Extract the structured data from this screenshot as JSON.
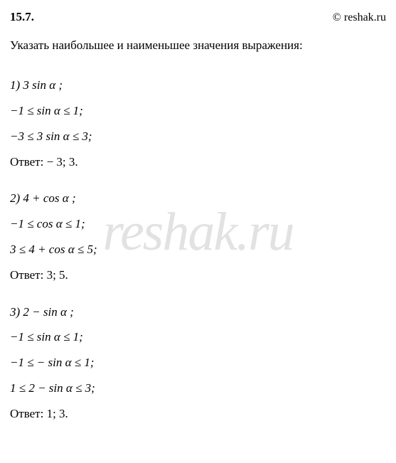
{
  "header": {
    "problem_number": "15.7.",
    "copyright": "© reshak.ru"
  },
  "watermark": "reshak.ru",
  "task": "Указать наибольшее и наименьшее значения выражения:",
  "subs": {
    "s1": {
      "title": "1) 3 sin α ;",
      "l1": "−1 ≤ sin α ≤ 1;",
      "l2": "−3 ≤ 3 sin α ≤ 3;",
      "answer": "Ответ:  − 3;  3."
    },
    "s2": {
      "title": "2) 4 + cos α ;",
      "l1": "−1 ≤ cos α ≤ 1;",
      "l2": "3 ≤ 4 + cos α ≤ 5;",
      "answer": "Ответ:  3;  5."
    },
    "s3": {
      "title": "3) 2 − sin α ;",
      "l1": "−1 ≤ sin α ≤ 1;",
      "l2": "−1 ≤ − sin α ≤ 1;",
      "l3": "1 ≤ 2 − sin α ≤ 3;",
      "answer": "Ответ:  1;  3."
    }
  }
}
